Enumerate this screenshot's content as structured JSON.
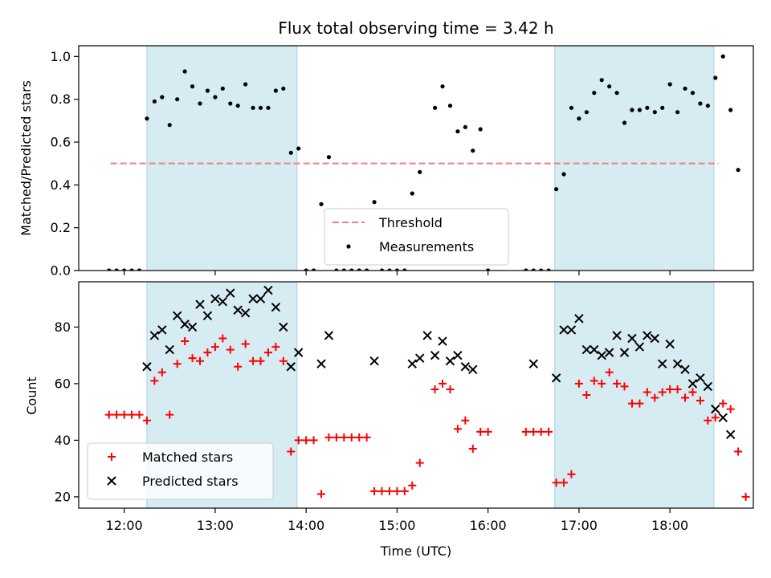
{
  "chart_data": [
    {
      "type": "scatter",
      "title": "Flux total observing time = 3.42 h",
      "ylabel": "Matched/Predicted stars",
      "xlabel": "",
      "xlim": [
        "11:30",
        "18:55"
      ],
      "ylim": [
        0,
        1.05
      ],
      "yticks": [
        0.0,
        0.2,
        0.4,
        0.6,
        0.8,
        1.0
      ],
      "ytick_labels": [
        "0.0",
        "0.2",
        "0.4",
        "0.6",
        "0.8",
        "1.0"
      ],
      "xticks": [
        "12:00",
        "13:00",
        "14:00",
        "15:00",
        "16:00",
        "17:00",
        "18:00"
      ],
      "shaded_intervals": [
        [
          "12:15",
          "13:54"
        ],
        [
          "16:44",
          "18:29"
        ]
      ],
      "shade_color": "#add8e6",
      "threshold": {
        "name": "Threshold",
        "value": 0.5,
        "x_range": [
          "11:51",
          "18:32"
        ],
        "color": "#f08080"
      },
      "legend": {
        "entries": [
          "Threshold",
          "Measurements"
        ],
        "placement": "lower-center"
      },
      "series": [
        {
          "name": "Measurements",
          "color": "#000000",
          "points": [
            [
              "11:50",
              0.0
            ],
            [
              "11:55",
              0.0
            ],
            [
              "12:00",
              0.0
            ],
            [
              "12:05",
              0.0
            ],
            [
              "12:10",
              0.0
            ],
            [
              "12:15",
              0.71
            ],
            [
              "12:20",
              0.79
            ],
            [
              "12:25",
              0.81
            ],
            [
              "12:30",
              0.68
            ],
            [
              "12:35",
              0.8
            ],
            [
              "12:40",
              0.93
            ],
            [
              "12:45",
              0.86
            ],
            [
              "12:50",
              0.78
            ],
            [
              "12:55",
              0.84
            ],
            [
              "13:00",
              0.81
            ],
            [
              "13:05",
              0.85
            ],
            [
              "13:10",
              0.78
            ],
            [
              "13:15",
              0.77
            ],
            [
              "13:20",
              0.87
            ],
            [
              "13:25",
              0.76
            ],
            [
              "13:30",
              0.76
            ],
            [
              "13:35",
              0.76
            ],
            [
              "13:40",
              0.84
            ],
            [
              "13:45",
              0.85
            ],
            [
              "13:50",
              0.55
            ],
            [
              "13:55",
              0.57
            ],
            [
              "14:00",
              0.0
            ],
            [
              "14:05",
              0.0
            ],
            [
              "14:10",
              0.31
            ],
            [
              "14:15",
              0.53
            ],
            [
              "14:20",
              0.0
            ],
            [
              "14:25",
              0.0
            ],
            [
              "14:30",
              0.0
            ],
            [
              "14:35",
              0.0
            ],
            [
              "14:40",
              0.0
            ],
            [
              "14:45",
              0.32
            ],
            [
              "14:50",
              0.0
            ],
            [
              "14:55",
              0.0
            ],
            [
              "15:00",
              0.0
            ],
            [
              "15:05",
              0.0
            ],
            [
              "15:10",
              0.36
            ],
            [
              "15:15",
              0.46
            ],
            [
              "15:25",
              0.76
            ],
            [
              "15:30",
              0.86
            ],
            [
              "15:35",
              0.77
            ],
            [
              "15:40",
              0.65
            ],
            [
              "15:45",
              0.67
            ],
            [
              "15:50",
              0.56
            ],
            [
              "15:55",
              0.66
            ],
            [
              "16:00",
              0.0
            ],
            [
              "16:25",
              0.0
            ],
            [
              "16:30",
              0.0
            ],
            [
              "16:35",
              0.0
            ],
            [
              "16:40",
              0.0
            ],
            [
              "16:45",
              0.38
            ],
            [
              "16:50",
              0.45
            ],
            [
              "16:55",
              0.76
            ],
            [
              "17:00",
              0.71
            ],
            [
              "17:05",
              0.74
            ],
            [
              "17:10",
              0.83
            ],
            [
              "17:15",
              0.89
            ],
            [
              "17:20",
              0.86
            ],
            [
              "17:25",
              0.83
            ],
            [
              "17:30",
              0.69
            ],
            [
              "17:35",
              0.75
            ],
            [
              "17:40",
              0.75
            ],
            [
              "17:45",
              0.76
            ],
            [
              "17:50",
              0.74
            ],
            [
              "17:55",
              0.76
            ],
            [
              "18:00",
              0.87
            ],
            [
              "18:05",
              0.74
            ],
            [
              "18:10",
              0.85
            ],
            [
              "18:15",
              0.83
            ],
            [
              "18:20",
              0.78
            ],
            [
              "18:25",
              0.77
            ],
            [
              "18:30",
              0.9
            ],
            [
              "18:35",
              1.0
            ],
            [
              "18:40",
              0.75
            ],
            [
              "18:45",
              0.47
            ]
          ]
        }
      ]
    },
    {
      "type": "scatter",
      "title": "",
      "ylabel": "Count",
      "xlabel": "Time (UTC)",
      "xlim": [
        "11:30",
        "18:55"
      ],
      "ylim": [
        16,
        96
      ],
      "yticks": [
        20,
        40,
        60,
        80
      ],
      "ytick_labels": [
        "20",
        "40",
        "60",
        "80"
      ],
      "xticks": [
        "12:00",
        "13:00",
        "14:00",
        "15:00",
        "16:00",
        "17:00",
        "18:00"
      ],
      "xtick_labels": [
        "12:00",
        "13:00",
        "14:00",
        "15:00",
        "16:00",
        "17:00",
        "18:00"
      ],
      "shaded_intervals": [
        [
          "12:15",
          "13:54"
        ],
        [
          "16:44",
          "18:29"
        ]
      ],
      "shade_color": "#add8e6",
      "legend": {
        "entries": [
          "Matched stars",
          "Predicted stars"
        ],
        "placement": "lower-left"
      },
      "series": [
        {
          "name": "Matched stars",
          "marker": "+",
          "color": "#ff0000",
          "points": [
            [
              "11:50",
              49
            ],
            [
              "11:55",
              49
            ],
            [
              "12:00",
              49
            ],
            [
              "12:05",
              49
            ],
            [
              "12:10",
              49
            ],
            [
              "12:15",
              47
            ],
            [
              "12:20",
              61
            ],
            [
              "12:25",
              64
            ],
            [
              "12:30",
              49
            ],
            [
              "12:35",
              67
            ],
            [
              "12:40",
              75
            ],
            [
              "12:45",
              69
            ],
            [
              "12:50",
              68
            ],
            [
              "12:55",
              71
            ],
            [
              "13:00",
              73
            ],
            [
              "13:05",
              76
            ],
            [
              "13:10",
              72
            ],
            [
              "13:15",
              66
            ],
            [
              "13:20",
              74
            ],
            [
              "13:25",
              68
            ],
            [
              "13:30",
              68
            ],
            [
              "13:35",
              71
            ],
            [
              "13:40",
              73
            ],
            [
              "13:45",
              68
            ],
            [
              "13:50",
              36
            ],
            [
              "13:55",
              40
            ],
            [
              "14:00",
              40
            ],
            [
              "14:05",
              40
            ],
            [
              "14:10",
              21
            ],
            [
              "14:15",
              41
            ],
            [
              "14:20",
              41
            ],
            [
              "14:25",
              41
            ],
            [
              "14:30",
              41
            ],
            [
              "14:35",
              41
            ],
            [
              "14:40",
              41
            ],
            [
              "14:45",
              22
            ],
            [
              "14:50",
              22
            ],
            [
              "14:55",
              22
            ],
            [
              "15:00",
              22
            ],
            [
              "15:05",
              22
            ],
            [
              "15:10",
              24
            ],
            [
              "15:15",
              32
            ],
            [
              "15:25",
              58
            ],
            [
              "15:30",
              60
            ],
            [
              "15:35",
              58
            ],
            [
              "15:40",
              44
            ],
            [
              "15:45",
              47
            ],
            [
              "15:50",
              37
            ],
            [
              "15:55",
              43
            ],
            [
              "16:00",
              43
            ],
            [
              "16:25",
              43
            ],
            [
              "16:30",
              43
            ],
            [
              "16:35",
              43
            ],
            [
              "16:40",
              43
            ],
            [
              "16:45",
              25
            ],
            [
              "16:50",
              25
            ],
            [
              "16:55",
              28
            ],
            [
              "17:00",
              60
            ],
            [
              "17:05",
              56
            ],
            [
              "17:10",
              61
            ],
            [
              "17:15",
              60
            ],
            [
              "17:20",
              64
            ],
            [
              "17:25",
              60
            ],
            [
              "17:30",
              59
            ],
            [
              "17:35",
              53
            ],
            [
              "17:40",
              53
            ],
            [
              "17:45",
              57
            ],
            [
              "17:50",
              55
            ],
            [
              "17:55",
              57
            ],
            [
              "18:00",
              58
            ],
            [
              "18:05",
              58
            ],
            [
              "18:10",
              55
            ],
            [
              "18:15",
              57
            ],
            [
              "18:20",
              54
            ],
            [
              "18:25",
              47
            ],
            [
              "18:30",
              48
            ],
            [
              "18:35",
              53
            ],
            [
              "18:40",
              51
            ],
            [
              "18:45",
              36
            ],
            [
              "18:50",
              20
            ]
          ]
        },
        {
          "name": "Predicted stars",
          "marker": "x",
          "color": "#000000",
          "points": [
            [
              "12:15",
              66
            ],
            [
              "12:20",
              77
            ],
            [
              "12:25",
              79
            ],
            [
              "12:30",
              72
            ],
            [
              "12:35",
              84
            ],
            [
              "12:40",
              81
            ],
            [
              "12:45",
              80
            ],
            [
              "12:50",
              88
            ],
            [
              "12:55",
              84
            ],
            [
              "13:00",
              90
            ],
            [
              "13:05",
              89
            ],
            [
              "13:10",
              92
            ],
            [
              "13:15",
              86
            ],
            [
              "13:20",
              85
            ],
            [
              "13:25",
              90
            ],
            [
              "13:30",
              90
            ],
            [
              "13:35",
              93
            ],
            [
              "13:40",
              87
            ],
            [
              "13:45",
              80
            ],
            [
              "13:50",
              66
            ],
            [
              "13:55",
              71
            ],
            [
              "14:10",
              67
            ],
            [
              "14:15",
              77
            ],
            [
              "14:45",
              68
            ],
            [
              "15:10",
              67
            ],
            [
              "15:15",
              69
            ],
            [
              "15:20",
              77
            ],
            [
              "15:25",
              70
            ],
            [
              "15:30",
              75
            ],
            [
              "15:35",
              68
            ],
            [
              "15:40",
              70
            ],
            [
              "15:45",
              66
            ],
            [
              "15:50",
              65
            ],
            [
              "16:30",
              67
            ],
            [
              "16:45",
              62
            ],
            [
              "16:50",
              79
            ],
            [
              "16:55",
              79
            ],
            [
              "17:00",
              83
            ],
            [
              "17:05",
              72
            ],
            [
              "17:10",
              72
            ],
            [
              "17:15",
              70
            ],
            [
              "17:20",
              71
            ],
            [
              "17:25",
              77
            ],
            [
              "17:30",
              71
            ],
            [
              "17:35",
              76
            ],
            [
              "17:40",
              73
            ],
            [
              "17:45",
              77
            ],
            [
              "17:50",
              76
            ],
            [
              "17:55",
              67
            ],
            [
              "18:00",
              74
            ],
            [
              "18:05",
              67
            ],
            [
              "18:10",
              65
            ],
            [
              "18:15",
              60
            ],
            [
              "18:20",
              62
            ],
            [
              "18:25",
              59
            ],
            [
              "18:30",
              51
            ],
            [
              "18:35",
              48
            ],
            [
              "18:40",
              42
            ]
          ]
        }
      ]
    }
  ]
}
